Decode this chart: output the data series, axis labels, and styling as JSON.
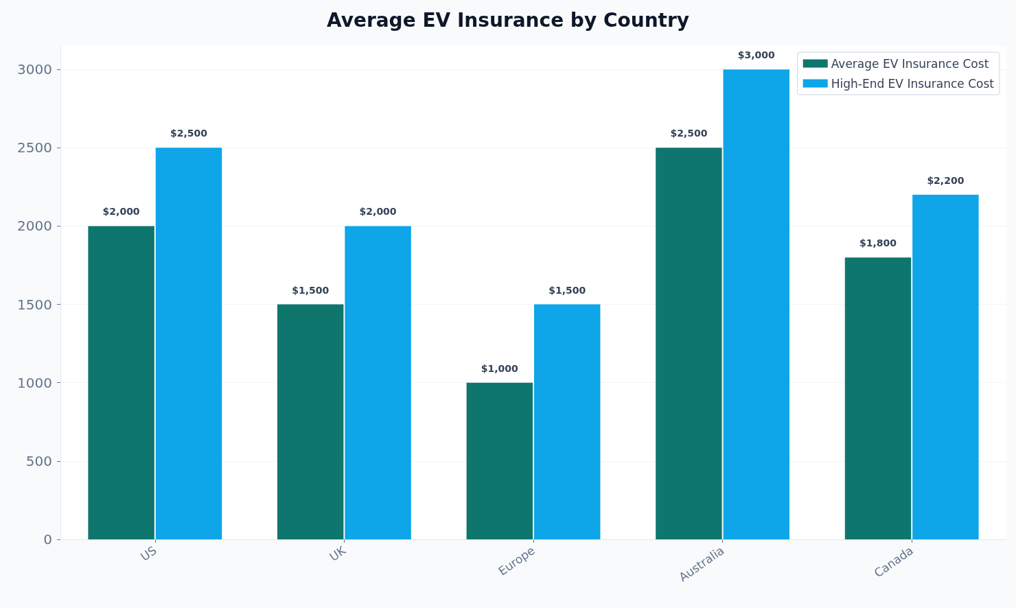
{
  "chart_data": {
    "type": "bar",
    "title": "Average EV Insurance by Country",
    "categories": [
      "US",
      "UK",
      "Europe",
      "Australia",
      "Canada"
    ],
    "series": [
      {
        "name": "Average EV Insurance Cost",
        "color": "#0f766e",
        "values": [
          2000,
          1500,
          1000,
          2500,
          1800
        ],
        "value_labels": [
          "$2,000",
          "$1,500",
          "$1,000",
          "$2,500",
          "$1,800"
        ]
      },
      {
        "name": "High-End EV Insurance Cost",
        "color": "#0ea5e9",
        "values": [
          2500,
          2000,
          1500,
          3000,
          2200
        ],
        "value_labels": [
          "$2,500",
          "$2,000",
          "$1,500",
          "$3,000",
          "$2,200"
        ]
      }
    ],
    "ylim": [
      0,
      3150
    ],
    "yticks": [
      0,
      500,
      1000,
      1500,
      2000,
      2500,
      3000
    ],
    "grid": "y",
    "legend": "top right"
  }
}
